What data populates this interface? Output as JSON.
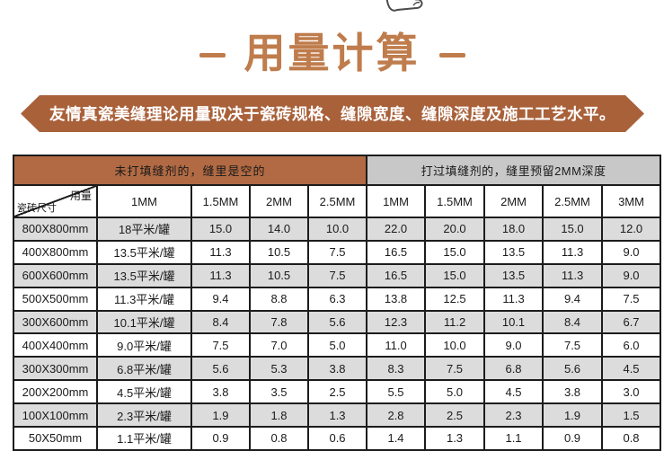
{
  "title": {
    "text": "用量计算",
    "color": "#BF7C4C"
  },
  "icons": {
    "top": "hand-sketch-icon"
  },
  "banner": {
    "text": "友情真瓷美缝理论用量取决于瓷砖规格、缝隙宽度、缝隙深度及施工工艺水平。",
    "background": "#A9613A"
  },
  "table": {
    "group_headers": [
      {
        "label": "未打填缝剂的，缝里是空的",
        "background": "#B16A43",
        "text_color": "#FFFFFF"
      },
      {
        "label": "打过填缝剂的，缝里预留2MM深度",
        "background": "#C8C8C8",
        "text_color": "#111111"
      }
    ],
    "corner": {
      "top_right": "用量",
      "bottom_left": "瓷砖尺寸"
    },
    "columns": [
      "1MM",
      "1.5MM",
      "2MM",
      "2.5MM",
      "1MM",
      "1.5MM",
      "2MM",
      "2.5MM",
      "3MM"
    ],
    "rows": [
      {
        "size": "800X800mm",
        "values": [
          "18平米/罐",
          "15.0",
          "14.0",
          "10.0",
          "22.0",
          "20.0",
          "18.0",
          "15.0",
          "12.0"
        ]
      },
      {
        "size": "400X800mm",
        "values": [
          "13.5平米/罐",
          "11.3",
          "10.5",
          "7.5",
          "16.5",
          "15.0",
          "13.5",
          "11.3",
          "9.0"
        ]
      },
      {
        "size": "600X600mm",
        "values": [
          "13.5平米/罐",
          "11.3",
          "10.5",
          "7.5",
          "16.5",
          "15.0",
          "13.5",
          "11.3",
          "9.0"
        ]
      },
      {
        "size": "500X500mm",
        "values": [
          "11.3平米/罐",
          "9.4",
          "8.8",
          "6.3",
          "13.8",
          "12.5",
          "11.3",
          "9.4",
          "7.5"
        ]
      },
      {
        "size": "300X600mm",
        "values": [
          "10.1平米/罐",
          "8.4",
          "7.8",
          "5.6",
          "12.3",
          "11.2",
          "10.1",
          "8.4",
          "6.7"
        ]
      },
      {
        "size": "400X400mm",
        "values": [
          "9.0平米/罐",
          "7.5",
          "7.0",
          "5.0",
          "11.0",
          "10.0",
          "9.0",
          "7.5",
          "6.0"
        ]
      },
      {
        "size": "300X300mm",
        "values": [
          "6.8平米/罐",
          "5.6",
          "5.3",
          "3.8",
          "8.3",
          "7.5",
          "6.8",
          "5.6",
          "4.5"
        ]
      },
      {
        "size": "200X200mm",
        "values": [
          "4.5平米/罐",
          "3.8",
          "3.5",
          "2.5",
          "5.5",
          "5.0",
          "4.5",
          "3.8",
          "3.0"
        ]
      },
      {
        "size": "100X100mm",
        "values": [
          "2.3平米/罐",
          "1.9",
          "1.8",
          "1.3",
          "2.8",
          "2.5",
          "2.3",
          "1.9",
          "1.5"
        ]
      },
      {
        "size": "50X50mm",
        "values": [
          "1.1平米/罐",
          "0.9",
          "0.8",
          "0.6",
          "1.4",
          "1.3",
          "1.1",
          "0.9",
          "0.8"
        ]
      }
    ],
    "stripe_colors": {
      "odd": "#DCDCDC",
      "even": "#FFFFFF"
    },
    "border_color": "#1C1C1C"
  }
}
